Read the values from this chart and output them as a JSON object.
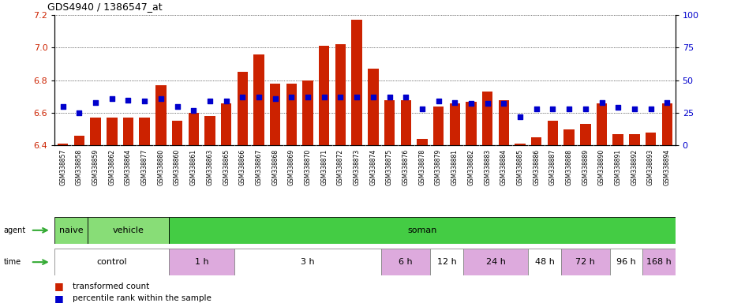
{
  "title": "GDS4940 / 1386547_at",
  "samples": [
    "GSM338857",
    "GSM338858",
    "GSM338859",
    "GSM338862",
    "GSM338864",
    "GSM338877",
    "GSM338880",
    "GSM338860",
    "GSM338861",
    "GSM338863",
    "GSM338865",
    "GSM338866",
    "GSM338867",
    "GSM338868",
    "GSM338869",
    "GSM338870",
    "GSM338871",
    "GSM338872",
    "GSM338873",
    "GSM338874",
    "GSM338875",
    "GSM338876",
    "GSM338878",
    "GSM338879",
    "GSM338881",
    "GSM338882",
    "GSM338883",
    "GSM338884",
    "GSM338885",
    "GSM338886",
    "GSM338887",
    "GSM338888",
    "GSM338889",
    "GSM338890",
    "GSM338891",
    "GSM338892",
    "GSM338893",
    "GSM338894"
  ],
  "bar_values": [
    6.41,
    6.46,
    6.57,
    6.57,
    6.57,
    6.57,
    6.77,
    6.55,
    6.6,
    6.58,
    6.66,
    6.85,
    6.96,
    6.78,
    6.78,
    6.8,
    7.01,
    7.02,
    7.17,
    6.87,
    6.68,
    6.68,
    6.44,
    6.64,
    6.66,
    6.67,
    6.73,
    6.68,
    6.41,
    6.45,
    6.55,
    6.5,
    6.53,
    6.66,
    6.47,
    6.47,
    6.48,
    6.66
  ],
  "dot_values": [
    30,
    25,
    33,
    36,
    35,
    34,
    36,
    30,
    27,
    34,
    34,
    37,
    37,
    36,
    37,
    37,
    37,
    37,
    37,
    37,
    37,
    37,
    28,
    34,
    33,
    32,
    32,
    32,
    22,
    28,
    28,
    28,
    28,
    33,
    29,
    28,
    28,
    33
  ],
  "ylim_left": [
    6.4,
    7.2
  ],
  "ylim_right": [
    0,
    100
  ],
  "yticks_left": [
    6.4,
    6.6,
    6.8,
    7.0,
    7.2
  ],
  "yticks_right": [
    0,
    25,
    50,
    75,
    100
  ],
  "bar_color": "#cc2200",
  "dot_color": "#0000cc",
  "bar_baseline": 6.4,
  "agent_groups": [
    {
      "label": "naive",
      "start": 0,
      "end": 2,
      "color": "#88dd77",
      "border": true
    },
    {
      "label": "vehicle",
      "start": 2,
      "end": 7,
      "color": "#88dd77",
      "border": true
    },
    {
      "label": "soman",
      "start": 7,
      "end": 38,
      "color": "#44cc44",
      "border": true
    }
  ],
  "time_groups": [
    {
      "label": "control",
      "start": 0,
      "end": 7,
      "color": "#ffffff"
    },
    {
      "label": "1 h",
      "start": 7,
      "end": 11,
      "color": "#ddaadd"
    },
    {
      "label": "3 h",
      "start": 11,
      "end": 20,
      "color": "#ffffff"
    },
    {
      "label": "6 h",
      "start": 20,
      "end": 23,
      "color": "#ddaadd"
    },
    {
      "label": "12 h",
      "start": 23,
      "end": 25,
      "color": "#ffffff"
    },
    {
      "label": "24 h",
      "start": 25,
      "end": 29,
      "color": "#ddaadd"
    },
    {
      "label": "48 h",
      "start": 29,
      "end": 31,
      "color": "#ffffff"
    },
    {
      "label": "72 h",
      "start": 31,
      "end": 34,
      "color": "#ddaadd"
    },
    {
      "label": "96 h",
      "start": 34,
      "end": 36,
      "color": "#ffffff"
    },
    {
      "label": "168 h",
      "start": 36,
      "end": 38,
      "color": "#ddaadd"
    }
  ],
  "legend_items": [
    {
      "label": "transformed count",
      "color": "#cc2200",
      "marker": "s"
    },
    {
      "label": "percentile rank within the sample",
      "color": "#0000cc",
      "marker": "s"
    }
  ],
  "tick_label_color_left": "#cc2200",
  "tick_label_color_right": "#0000cc",
  "chart_bg": "#ffffff",
  "label_bg": "#d8d8d8"
}
